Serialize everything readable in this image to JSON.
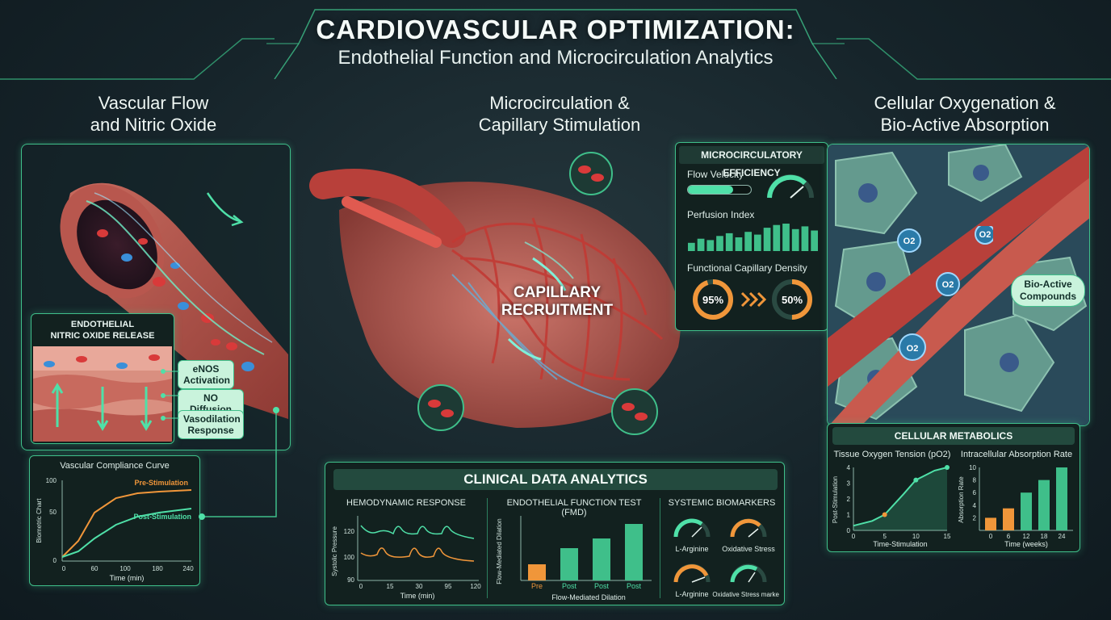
{
  "header": {
    "title": "CARDIOVASCULAR OPTIMIZATION:",
    "subtitle": "Endothelial Function and Microcirculation Analytics"
  },
  "sections": {
    "left_title_1": "Vascular Flow",
    "left_title_2": "and Nitric Oxide",
    "center_title_1": "Microcirculation &",
    "center_title_2": "Capillary Stimulation",
    "right_title_1": "Cellular Oxygenation &",
    "right_title_2": "Bio-Active Absorption"
  },
  "endothelial": {
    "title_1": "ENDOTHELIAL",
    "title_2": "NITRIC OXIDE RELEASE",
    "labels": [
      "eNOS Activation",
      "NO Diffusion",
      "Vasodilation Response"
    ]
  },
  "compliance": {
    "title": "Vascular Compliance Curve",
    "ylabel": "Biometric Chart",
    "xlabel": "Time (min)",
    "yticks": [
      "100",
      "50",
      "0"
    ],
    "xticks": [
      "0",
      "60",
      "100",
      "180",
      "240"
    ],
    "series": [
      "Pre-Stimulation",
      "Post-Stimulation"
    ]
  },
  "capillary": {
    "label_1": "CAPILLARY",
    "label_2": "RECRUITMENT"
  },
  "micro": {
    "title": "MICROCIRCULATORY EFFICIENCY",
    "flow_velocity": "Flow Velocity",
    "flow_velocity_level": 0.72,
    "perfusion_index": "Perfusion Index",
    "perfusion_bars": [
      0.3,
      0.45,
      0.4,
      0.55,
      0.65,
      0.5,
      0.7,
      0.6,
      0.85,
      0.95,
      1.0,
      0.8,
      0.9,
      0.75
    ],
    "fcd_label": "Functional Capillary Density",
    "fcd_a": "95%",
    "fcd_b": "50%",
    "fcd_a_value": 0.95,
    "fcd_b_value": 0.5
  },
  "right_labels": {
    "o2": "O2",
    "bio_active_1": "Bio-Active",
    "bio_active_2": "Compounds"
  },
  "clinical": {
    "title": "CLINICAL DATA ANALYTICS",
    "hemo": {
      "title": "HEMODYNAMIC RESPONSE",
      "ylabel": "Systolic Pressure",
      "xlabel": "Time (min)",
      "yticks": [
        "120",
        "100",
        "90"
      ],
      "xticks": [
        "0",
        "15",
        "30",
        "95",
        "120"
      ]
    },
    "fmd": {
      "title": "ENDOTHELIAL FUNCTION TEST (FMD)",
      "ylabel": "Flow-Mediated Dilation",
      "xlabel": "Flow-Mediated Dilation",
      "categories": [
        "Pre",
        "Post",
        "Post",
        "Post"
      ],
      "values": [
        20,
        40,
        52,
        70
      ],
      "ylim": [
        0,
        80
      ]
    },
    "biomarkers": {
      "title": "SYSTEMIC BIOMARKERS",
      "items": [
        "L-Arginine",
        "Oxidative Stress",
        "L-Arginine",
        "Oxidative Stress markers"
      ]
    }
  },
  "cellular": {
    "title": "CELLULAR METABOLICS",
    "left_chart": {
      "title": "Tissue Oxygen Tension (pO2)",
      "ylabel": "Post-Stimulation",
      "xlabel": "Time-Stimulation",
      "yticks": [
        "4",
        "3",
        "2",
        "1",
        "0"
      ],
      "xticks": [
        "0",
        "5",
        "10",
        "15"
      ]
    },
    "right_chart": {
      "title": "Intracellular Absorption Rate",
      "ylabel": "Absorption Rate",
      "xlabel": "Time (weeks)",
      "yticks": [
        "10",
        "8",
        "6",
        "4",
        "2"
      ],
      "xticks": [
        "0",
        "6",
        "12",
        "18",
        "24"
      ],
      "values": [
        2,
        3.5,
        6,
        8,
        10
      ]
    }
  },
  "chart_data": [
    {
      "type": "line",
      "title": "Vascular Compliance Curve",
      "xlabel": "Time (min)",
      "ylabel": "Biometric Chart",
      "x": [
        0,
        30,
        60,
        100,
        140,
        180,
        240
      ],
      "series": [
        {
          "name": "Pre-Stimulation",
          "values": [
            5,
            25,
            60,
            78,
            84,
            86,
            88
          ]
        },
        {
          "name": "Post-Stimulation",
          "values": [
            5,
            12,
            28,
            45,
            55,
            60,
            65
          ]
        }
      ],
      "ylim": [
        0,
        100
      ]
    },
    {
      "type": "bar",
      "title": "ENDOTHELIAL FUNCTION TEST (FMD)",
      "categories": [
        "Pre",
        "Post",
        "Post",
        "Post"
      ],
      "values": [
        20,
        40,
        52,
        70
      ]
    },
    {
      "type": "line",
      "title": "Tissue Oxygen Tension (pO2)",
      "x": [
        0,
        3,
        5,
        8,
        10,
        13,
        15
      ],
      "values": [
        0.3,
        0.6,
        1.0,
        2.3,
        3.2,
        3.8,
        4.0
      ],
      "ylim": [
        0,
        4
      ]
    },
    {
      "type": "bar",
      "title": "Intracellular Absorption Rate",
      "categories": [
        "0",
        "6",
        "12",
        "18",
        "24"
      ],
      "values": [
        2,
        3.5,
        6,
        8,
        10
      ],
      "ylim": [
        0,
        10
      ]
    }
  ]
}
